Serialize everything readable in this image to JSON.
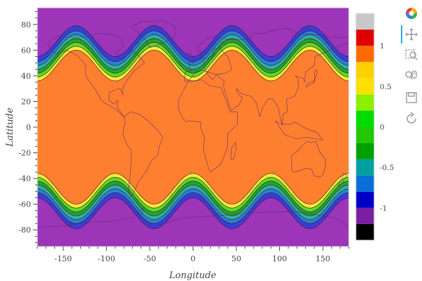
{
  "axes": {
    "xlabel": "Longitude",
    "ylabel": "Latitude",
    "xticks": [
      -150,
      -100,
      -50,
      0,
      50,
      100,
      150
    ],
    "yticks": [
      80,
      60,
      40,
      20,
      0,
      -20,
      -40,
      -60,
      -80
    ],
    "xlim": [
      -180,
      180
    ],
    "ylim": [
      -93,
      93
    ]
  },
  "chart_data": {
    "type": "heatmap",
    "description_kind": "filled-contour",
    "x_range": [
      -180,
      180
    ],
    "y_range": [
      -90,
      90
    ],
    "band_center_lat": 50,
    "band_amplitude_lat": 12,
    "wave_period_deg": 90,
    "levels": [
      -1.4,
      -1.2,
      -1.0,
      -0.8,
      -0.6,
      -0.4,
      -0.2,
      0.0,
      0.2,
      0.4,
      0.6,
      0.8,
      1.0,
      1.2,
      1.4
    ],
    "level_colors": [
      "#000000",
      "#7b1fa2",
      "#0000c8",
      "#0a6ed9",
      "#00a0a0",
      "#00a000",
      "#22c800",
      "#00dc00",
      "#8cf000",
      "#ffe000",
      "#ffd000",
      "#ff6a00",
      "#e00000",
      "#c8c8c8"
    ],
    "plot_fill_colors": {
      "polar": "#9c35b8",
      "band_outer": "#3c3cd8",
      "band_1": "#2f7fd0",
      "band_2": "#30b0a8",
      "band_3": "#2ca02c",
      "band_4": "#5ed82a",
      "band_5": "#ffe93a",
      "equatorial": "#ff7f30"
    }
  },
  "colorbar": {
    "tick_labels": [
      "1",
      "0.5",
      "0",
      "-0.5",
      "-1"
    ],
    "tick_values": [
      1.0,
      0.5,
      0.0,
      -0.5,
      -1.0
    ]
  },
  "toolbar": {
    "tools": [
      "bokeh-logo-icon",
      "pan-icon",
      "box-zoom-icon",
      "wheel-zoom-icon",
      "save-icon",
      "reset-icon"
    ]
  },
  "colors": {
    "coastline": "#5a2a6a",
    "tool_active": "#26aae1",
    "tool_icon": "#a0a0a0"
  }
}
